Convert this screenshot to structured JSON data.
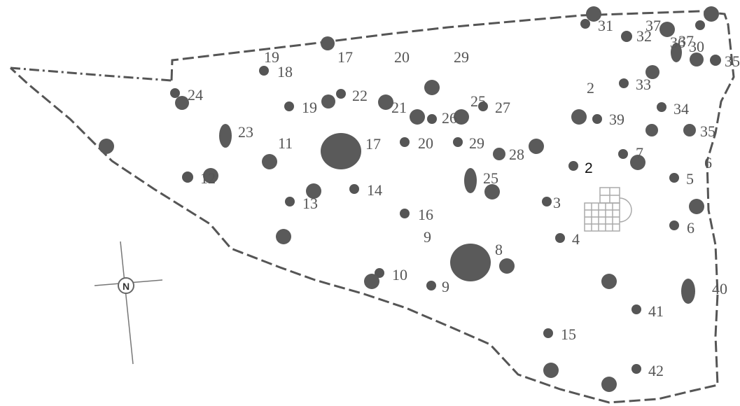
{
  "map": {
    "compass_label": "N",
    "colors": {
      "feature": "#5a5a5a",
      "boundary": "#555555",
      "label": "#555555",
      "grid": "#999999"
    },
    "labels": [
      "19",
      "18",
      "17",
      "20",
      "29",
      "24",
      "22",
      "19",
      "21",
      "26",
      "25",
      "27",
      "23",
      "11",
      "17",
      "20",
      "29",
      "28",
      "14",
      "13",
      "25",
      "16",
      "9",
      "8",
      "10",
      "9",
      "31",
      "32",
      "37",
      "36",
      "37",
      "30",
      "35",
      "2",
      "33",
      "34",
      "39",
      "35",
      "7",
      "2",
      "6",
      "5",
      "3",
      "6",
      "4",
      "40",
      "41",
      "15",
      "42",
      "12"
    ]
  }
}
